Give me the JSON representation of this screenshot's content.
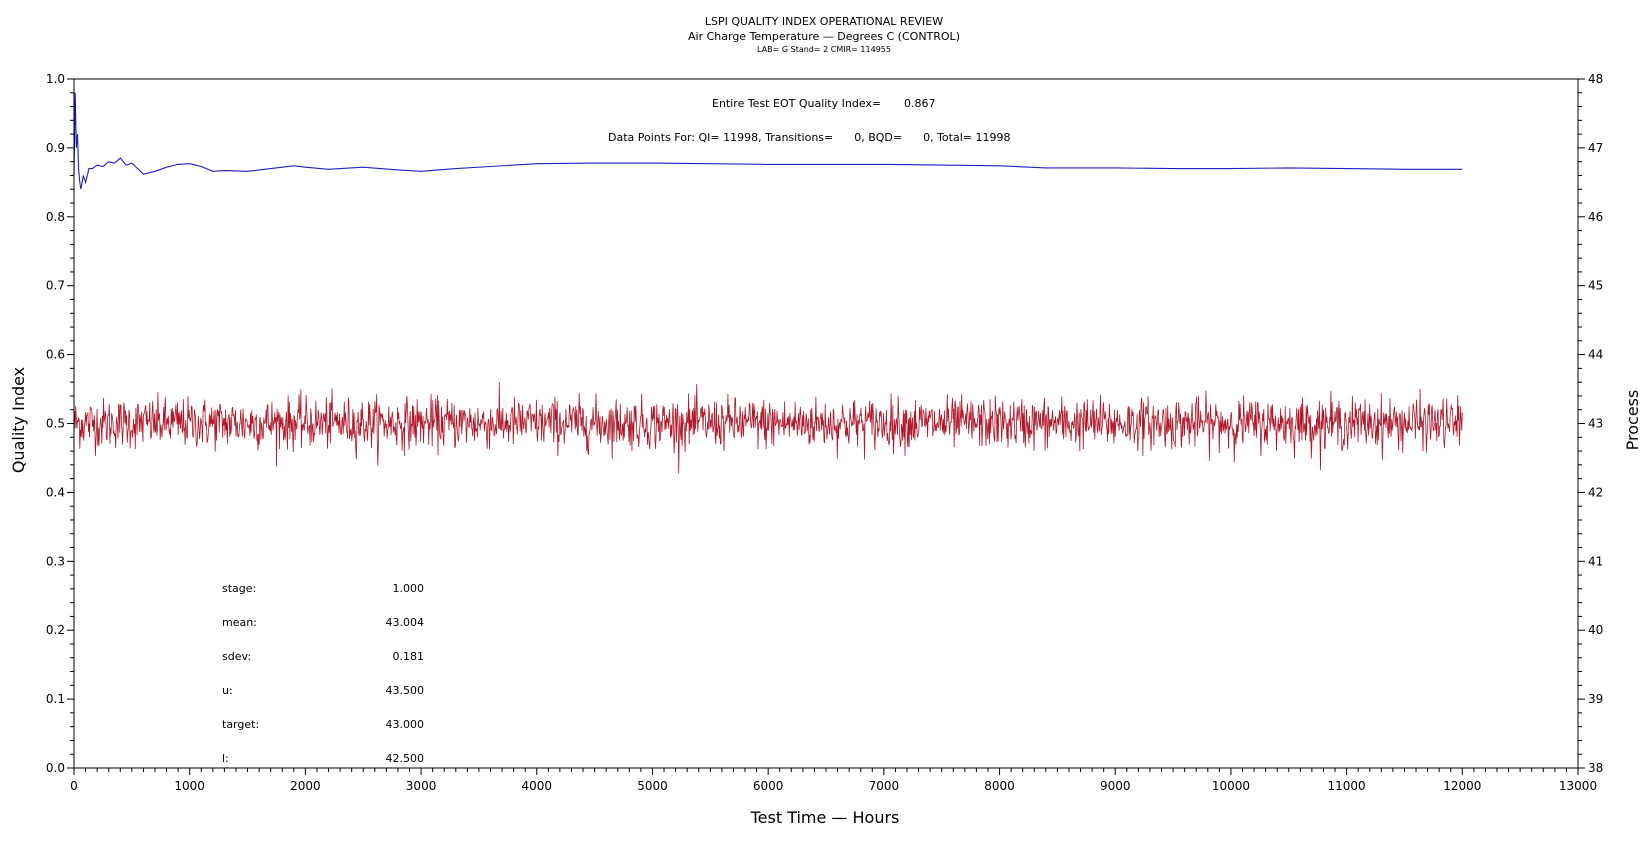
{
  "title": "LSPI QUALITY INDEX OPERATIONAL REVIEW",
  "subtitle": "Air Charge Temperature — Degrees C (CONTROL)",
  "info_line": "LAB= G Stand= 2 CMIR= 114955",
  "annotations": {
    "eot_label": "Entire Test EOT Quality Index=",
    "eot_value": "0.867",
    "points_line": "Data Points For: QI= 11998, Transitions=      0, BQD=      0, Total= 11998"
  },
  "stats": [
    {
      "label": "stage:",
      "value": "1.000"
    },
    {
      "label": "mean:",
      "value": "43.004"
    },
    {
      "label": "sdev:",
      "value": "0.181"
    },
    {
      "label": "u:",
      "value": "43.500"
    },
    {
      "label": "target:",
      "value": "43.000"
    },
    {
      "label": "l:",
      "value": "42.500"
    }
  ],
  "colors": {
    "quality_index": "#1f1fc4",
    "process": "#b0182a",
    "axes": "#000000"
  },
  "chart_data": {
    "type": "line",
    "xlabel": "Test Time — Hours",
    "ylabel": "Quality Index",
    "y2label": "Process",
    "xlim": [
      0,
      13000
    ],
    "ylim": [
      0,
      1.0
    ],
    "y2lim": [
      38,
      48
    ],
    "x_ticks": [
      "0",
      "1000",
      "2000",
      "3000",
      "4000",
      "5000",
      "6000",
      "7000",
      "8000",
      "9000",
      "10000",
      "11000",
      "12000",
      "13000"
    ],
    "y_ticks": [
      "0.0",
      "0.1",
      "0.2",
      "0.3",
      "0.4",
      "0.5",
      "0.6",
      "0.7",
      "0.8",
      "0.9",
      "1.0"
    ],
    "y2_ticks": [
      "38",
      "39",
      "40",
      "41",
      "42",
      "43",
      "44",
      "45",
      "46",
      "47",
      "48"
    ],
    "series": [
      {
        "axis": "left",
        "x": [
          0,
          10,
          20,
          30,
          40,
          50,
          60,
          80,
          100,
          130,
          160,
          200,
          250,
          300,
          350,
          400,
          450,
          500,
          550,
          600,
          650,
          700,
          800,
          900,
          1000,
          1100,
          1200,
          1300,
          1500,
          1700,
          1900,
          2000,
          2200,
          2500,
          2800,
          3000,
          3300,
          3600,
          4000,
          4500,
          5000,
          5500,
          6000,
          6500,
          7000,
          7500,
          8000,
          8400,
          9000,
          9500,
          10000,
          10500,
          11000,
          11500,
          12000
        ],
        "values": [
          0.86,
          0.98,
          0.9,
          0.92,
          0.87,
          0.85,
          0.84,
          0.86,
          0.85,
          0.87,
          0.87,
          0.875,
          0.873,
          0.88,
          0.878,
          0.885,
          0.875,
          0.878,
          0.87,
          0.862,
          0.864,
          0.866,
          0.872,
          0.876,
          0.877,
          0.873,
          0.866,
          0.867,
          0.866,
          0.87,
          0.874,
          0.872,
          0.869,
          0.872,
          0.868,
          0.866,
          0.87,
          0.873,
          0.877,
          0.878,
          0.878,
          0.877,
          0.876,
          0.876,
          0.876,
          0.875,
          0.874,
          0.871,
          0.871,
          0.87,
          0.87,
          0.871,
          0.87,
          0.869,
          0.869
        ]
      },
      {
        "axis": "right",
        "x_range": [
          0,
          12000
        ],
        "sample_count": 11998,
        "mean": 43.004,
        "sdev": 0.181,
        "min": 42.25,
        "max": 43.87
      }
    ]
  }
}
